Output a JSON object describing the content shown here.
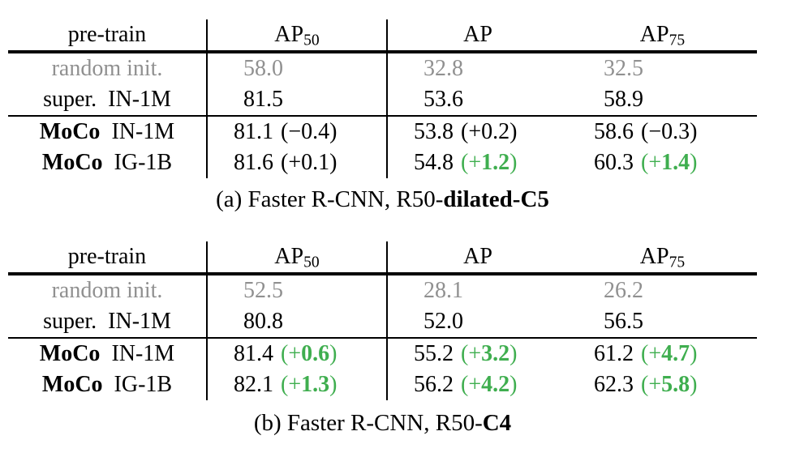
{
  "colors": {
    "delta_green": "#3fae4f",
    "muted_gray": "#909090",
    "text_black": "#000000",
    "background": "#ffffff"
  },
  "tables": [
    {
      "caption_prefix": "(a) Faster R-CNN, R50-",
      "caption_bold": "dilated-C5",
      "columns": {
        "pretrain": "pre-train",
        "ap50_base": "AP",
        "ap50_sub": "50",
        "ap_base": "AP",
        "ap75_base": "AP",
        "ap75_sub": "75"
      },
      "rows": [
        {
          "label": "random init.",
          "cells": [
            {
              "value": "58.0"
            },
            {
              "value": "32.8"
            },
            {
              "value": "32.5"
            }
          ]
        },
        {
          "label": "super.  IN-1M",
          "cells": [
            {
              "value": "81.5"
            },
            {
              "value": "53.6"
            },
            {
              "value": "58.9"
            }
          ]
        },
        {
          "label_strong": "MoCo",
          "label_rest": "  IN-1M",
          "cells": [
            {
              "value": "81.1",
              "delta": "(−0.4)",
              "delta_sign": "−",
              "delta_num": "0.4",
              "delta_style": "plain"
            },
            {
              "value": "53.8",
              "delta": "(+0.2)",
              "delta_sign": "+",
              "delta_num": "0.2",
              "delta_style": "plain"
            },
            {
              "value": "58.6",
              "delta": "(−0.3)",
              "delta_sign": "−",
              "delta_num": "0.3",
              "delta_style": "plain"
            }
          ]
        },
        {
          "label_strong": "MoCo",
          "label_rest": "  IG-1B",
          "cells": [
            {
              "value": "81.6",
              "delta": "(+0.1)",
              "delta_sign": "+",
              "delta_num": "0.1",
              "delta_style": "plain"
            },
            {
              "value": "54.8",
              "delta": "(+1.2)",
              "delta_sign": "+",
              "delta_num": "1.2",
              "delta_style": "green"
            },
            {
              "value": "60.3",
              "delta": "(+1.4)",
              "delta_sign": "+",
              "delta_num": "1.4",
              "delta_style": "green"
            }
          ]
        }
      ]
    },
    {
      "caption_prefix": "(b) Faster R-CNN, R50-",
      "caption_bold": "C4",
      "columns": {
        "pretrain": "pre-train",
        "ap50_base": "AP",
        "ap50_sub": "50",
        "ap_base": "AP",
        "ap75_base": "AP",
        "ap75_sub": "75"
      },
      "rows": [
        {
          "label": "random init.",
          "cells": [
            {
              "value": "52.5"
            },
            {
              "value": "28.1"
            },
            {
              "value": "26.2"
            }
          ]
        },
        {
          "label": "super.  IN-1M",
          "cells": [
            {
              "value": "80.8"
            },
            {
              "value": "52.0"
            },
            {
              "value": "56.5"
            }
          ]
        },
        {
          "label_strong": "MoCo",
          "label_rest": "  IN-1M",
          "cells": [
            {
              "value": "81.4",
              "delta": "(+0.6)",
              "delta_sign": "+",
              "delta_num": "0.6",
              "delta_style": "green"
            },
            {
              "value": "55.2",
              "delta": "(+3.2)",
              "delta_sign": "+",
              "delta_num": "3.2",
              "delta_style": "green"
            },
            {
              "value": "61.2",
              "delta": "(+4.7)",
              "delta_sign": "+",
              "delta_num": "4.7",
              "delta_style": "green"
            }
          ]
        },
        {
          "label_strong": "MoCo",
          "label_rest": "  IG-1B",
          "cells": [
            {
              "value": "82.1",
              "delta": "(+1.3)",
              "delta_sign": "+",
              "delta_num": "1.3",
              "delta_style": "green"
            },
            {
              "value": "56.2",
              "delta": "(+4.2)",
              "delta_sign": "+",
              "delta_num": "4.2",
              "delta_style": "green"
            },
            {
              "value": "62.3",
              "delta": "(+5.8)",
              "delta_sign": "+",
              "delta_num": "5.8",
              "delta_style": "green"
            }
          ]
        }
      ]
    }
  ]
}
